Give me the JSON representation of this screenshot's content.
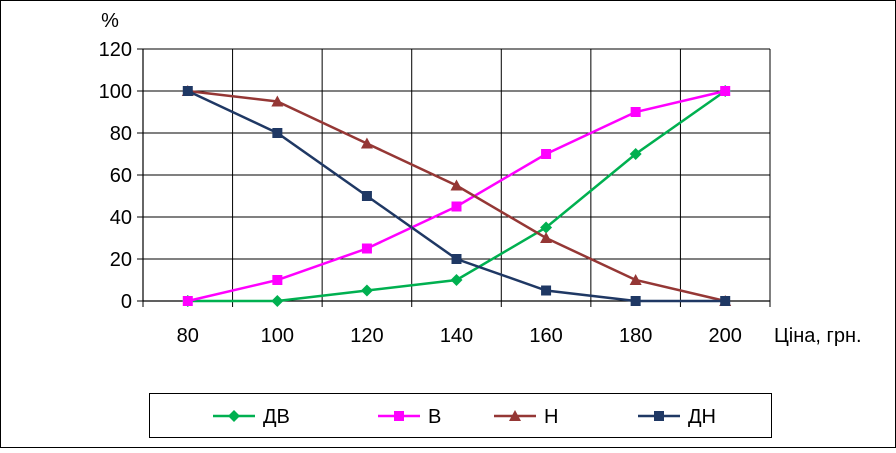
{
  "chart_data": {
    "type": "line",
    "title": "",
    "xlabel": "Ціна, грн.",
    "ylabel": "%",
    "x": [
      80,
      100,
      120,
      140,
      160,
      180,
      200
    ],
    "ylim": [
      0,
      120
    ],
    "y_ticks": [
      0,
      20,
      40,
      60,
      80,
      100,
      120
    ],
    "x_tick_labels": [
      "80",
      "100",
      "120",
      "140",
      "160",
      "180",
      "200"
    ],
    "y_tick_labels": [
      "0",
      "20",
      "40",
      "60",
      "80",
      "100",
      "120"
    ],
    "grid": true,
    "legend_position": "bottom",
    "series": [
      {
        "name": "ДВ",
        "color": "#00b050",
        "marker": "diamond",
        "values": [
          0,
          0,
          5,
          10,
          35,
          70,
          100
        ]
      },
      {
        "name": "В",
        "color": "#ff00ff",
        "marker": "square",
        "values": [
          0,
          10,
          25,
          45,
          70,
          90,
          100
        ]
      },
      {
        "name": "Н",
        "color": "#953735",
        "marker": "triangle",
        "values": [
          100,
          95,
          75,
          55,
          30,
          10,
          0
        ]
      },
      {
        "name": "ДН",
        "color": "#1f3864",
        "marker": "square",
        "values": [
          100,
          80,
          50,
          20,
          5,
          0,
          0
        ]
      }
    ]
  }
}
